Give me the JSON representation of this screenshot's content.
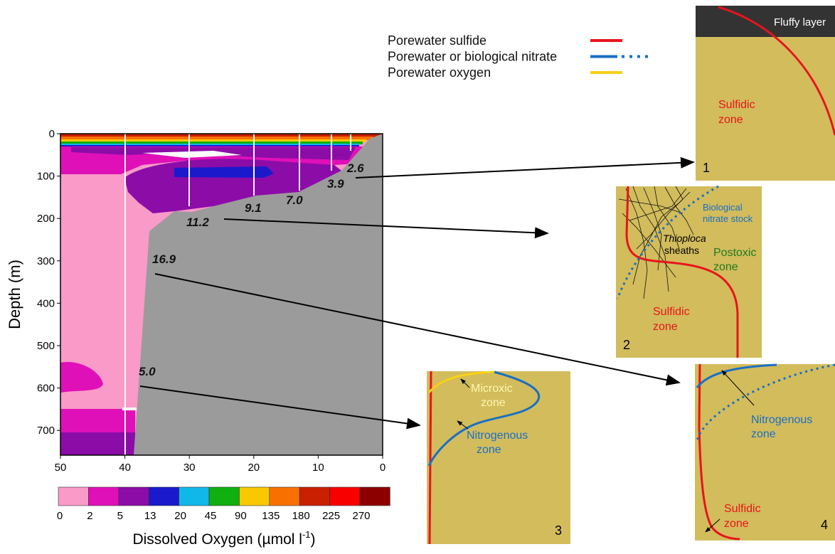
{
  "legend": [
    {
      "label": "Porewater sulfide",
      "color": "#e8141c"
    },
    {
      "label": "Porewater or biological nitrate",
      "color": "#1a6fc4"
    },
    {
      "label": "Porewater oxygen",
      "color": "#f7d117"
    }
  ],
  "section": {
    "y_label": "Depth (m)",
    "yticks": [
      0,
      100,
      200,
      300,
      400,
      500,
      600,
      700
    ],
    "xticks": [
      50,
      40,
      30,
      20,
      10,
      0
    ],
    "stations": [
      "2.6",
      "3.9",
      "7.0",
      "9.1",
      "11.2",
      "16.9",
      "5.0"
    ]
  },
  "colorbar": {
    "title": "Dissolved Oxygen (µmol l",
    "title_sup": "-1",
    "title_end": ")",
    "ticks": [
      0,
      2,
      5,
      13,
      20,
      45,
      90,
      135,
      180,
      225,
      270
    ],
    "colors": [
      "#f99ac8",
      "#e010b8",
      "#8c0ca8",
      "#1a1acc",
      "#10b8e8",
      "#10b010",
      "#f8c800",
      "#f87000",
      "#c82000",
      "#f80000",
      "#8c0000"
    ]
  },
  "panels": [
    {
      "texts": [
        "Fluffy layer",
        "Sulfidic",
        "zone",
        "1"
      ]
    },
    {
      "texts": [
        "Biological",
        "nitrate stock",
        "Thioploca",
        "sheaths",
        "Postoxic",
        "zone",
        "Sulfidic",
        "zone",
        "2"
      ]
    },
    {
      "texts": [
        "Microxic",
        "zone",
        "Nitrogenous",
        "zone",
        "3"
      ]
    },
    {
      "texts": [
        "Nitrogenous",
        "zone",
        "Sulfidic",
        "zone",
        "4"
      ]
    }
  ]
}
